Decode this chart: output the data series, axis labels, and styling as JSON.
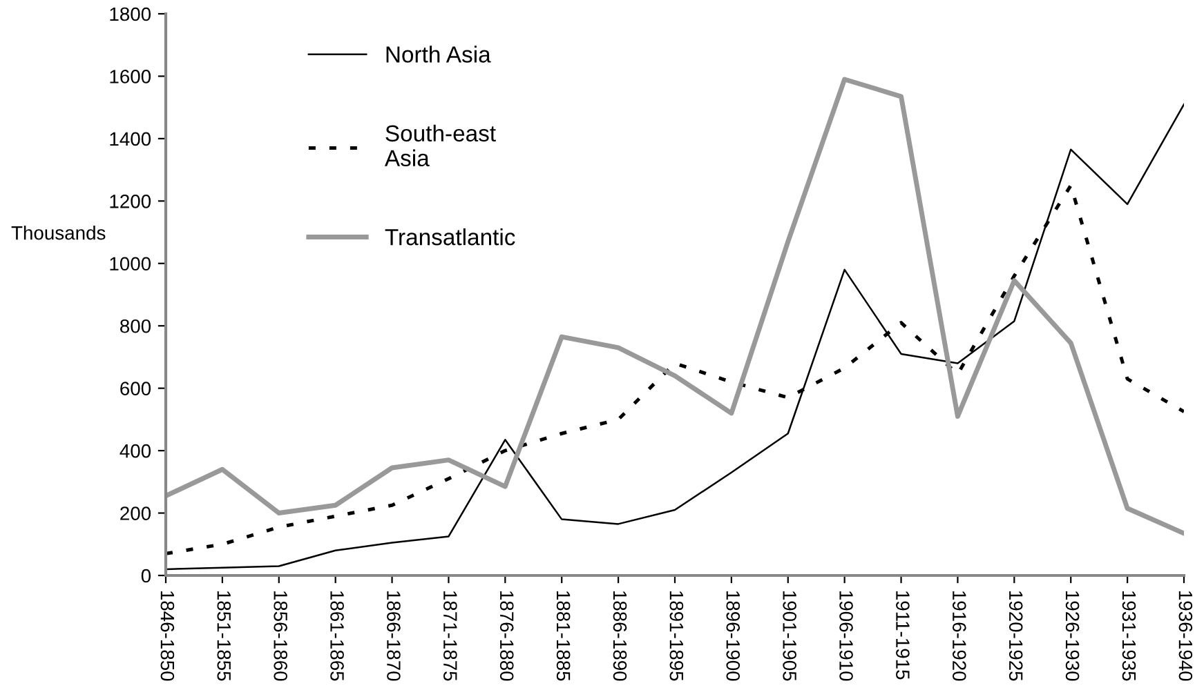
{
  "chart_data": {
    "type": "line",
    "ylabel": "Thousands",
    "categories": [
      "1846-1850",
      "1851-1855",
      "1856-1860",
      "1861-1865",
      "1866-1870",
      "1871-1875",
      "1876-1880",
      "1881-1885",
      "1886-1890",
      "1891-1895",
      "1896-1900",
      "1901-1905",
      "1906-1910",
      "1911-1915",
      "1916-1920",
      "1920-1925",
      "1926-1930",
      "1931-1935",
      "1936-1940"
    ],
    "series": [
      {
        "name": "North Asia",
        "color": "#000000",
        "line_style": "solid",
        "values": [
          20,
          25,
          30,
          80,
          105,
          125,
          435,
          180,
          165,
          210,
          330,
          455,
          980,
          710,
          680,
          815,
          1365,
          1190,
          1510
        ]
      },
      {
        "name": "South-east\nAsia",
        "color": "#000000",
        "line_style": "dotted",
        "values": [
          70,
          100,
          155,
          190,
          225,
          310,
          400,
          455,
          500,
          680,
          620,
          570,
          665,
          810,
          645,
          960,
          1250,
          630,
          525
        ]
      },
      {
        "name": "Transatlantic",
        "color": "#999999",
        "line_style": "solid",
        "values": [
          255,
          340,
          200,
          225,
          345,
          370,
          285,
          765,
          730,
          640,
          520,
          1070,
          1590,
          1535,
          510,
          945,
          745,
          215,
          135
        ]
      }
    ],
    "ylim": [
      0,
      1800
    ],
    "yticks": [
      0,
      200,
      400,
      600,
      800,
      1000,
      1200,
      1400,
      1600,
      1800
    ],
    "grid": false,
    "legend": "top left",
    "marker": "none"
  }
}
